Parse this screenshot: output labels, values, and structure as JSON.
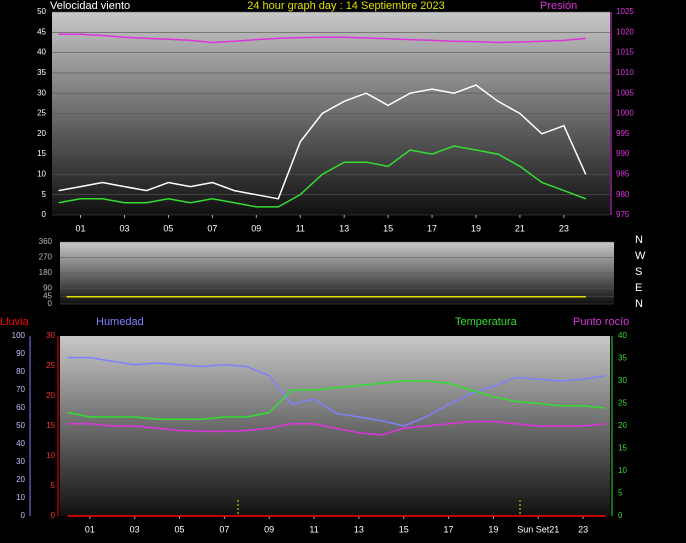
{
  "chart_data": [
    {
      "type": "line",
      "title": "24 hour graph day : 14 Septiembre 2023",
      "y_label": "Velocidad viento",
      "y2_label": "Presión",
      "x": [
        0,
        1,
        2,
        3,
        4,
        5,
        6,
        7,
        8,
        9,
        10,
        11,
        12,
        13,
        14,
        15,
        16,
        17,
        18,
        19,
        20,
        21,
        22,
        23,
        24
      ],
      "xlim": [
        -0.3,
        25.1
      ],
      "xticks": [
        {
          "value": 1,
          "label": "01"
        },
        {
          "value": 3,
          "label": "03"
        },
        {
          "value": 5,
          "label": "05"
        },
        {
          "value": 7,
          "label": "07"
        },
        {
          "value": 9,
          "label": "09"
        },
        {
          "value": 11,
          "label": "11"
        },
        {
          "value": 13,
          "label": "13"
        },
        {
          "value": 15,
          "label": "15"
        },
        {
          "value": 17,
          "label": "17"
        },
        {
          "value": 19,
          "label": "19"
        },
        {
          "value": 21,
          "label": "21"
        },
        {
          "value": 23,
          "label": "23"
        }
      ],
      "ylim": [
        0,
        50
      ],
      "yticks": [
        0,
        5,
        10,
        15,
        20,
        25,
        30,
        35,
        40,
        45,
        50
      ],
      "y2lim": [
        975,
        1025
      ],
      "y2ticks": [
        975,
        980,
        985,
        990,
        995,
        1000,
        1005,
        1010,
        1015,
        1020,
        1025
      ],
      "grid": true,
      "series": [
        {
          "color": "#ffffff",
          "values": [
            6,
            7,
            8,
            7,
            6,
            8,
            7,
            8,
            6,
            5,
            4,
            18,
            25,
            28,
            30,
            27,
            30,
            31,
            30,
            32,
            28,
            25,
            20,
            22,
            10
          ]
        },
        {
          "color": "#33dd33",
          "values": [
            3,
            4,
            4,
            3,
            3,
            4,
            3,
            4,
            3,
            2,
            2,
            5,
            10,
            13,
            13,
            12,
            16,
            15,
            17,
            16,
            15,
            12,
            8,
            6,
            4
          ]
        },
        {
          "color": "#dd33dd",
          "axis": "y2",
          "values": [
            1019.5,
            1019.5,
            1019.2,
            1018.8,
            1018.5,
            1018.3,
            1018.0,
            1017.5,
            1017.8,
            1018.2,
            1018.5,
            1018.7,
            1018.8,
            1018.8,
            1018.6,
            1018.4,
            1018.2,
            1018.0,
            1017.8,
            1017.7,
            1017.5,
            1017.6,
            1017.8,
            1018.0,
            1018.5
          ]
        }
      ]
    },
    {
      "type": "line",
      "direction_labels": [
        "N",
        "W",
        "S",
        "E",
        "N"
      ],
      "x": [
        0,
        1,
        2,
        3,
        4,
        5,
        6,
        7,
        8,
        9,
        10,
        11,
        12,
        13,
        14,
        15,
        16,
        17,
        18,
        19,
        20,
        21,
        22,
        23,
        24
      ],
      "xlim": [
        -0.3,
        25.3
      ],
      "ylim": [
        0,
        360
      ],
      "yticks": [
        0,
        45,
        90,
        180,
        270,
        360
      ],
      "grid": true,
      "series": [
        {
          "color": "#e0e000",
          "values": [
            42,
            42,
            42,
            42,
            42,
            42,
            42,
            42,
            42,
            42,
            42,
            42,
            42,
            42,
            42,
            42,
            42,
            42,
            42,
            42,
            42,
            42,
            42,
            42,
            42
          ]
        }
      ]
    },
    {
      "type": "line",
      "x": [
        0,
        1,
        2,
        3,
        4,
        5,
        6,
        7,
        8,
        9,
        10,
        11,
        12,
        13,
        14,
        15,
        16,
        17,
        18,
        19,
        20,
        21,
        22,
        23,
        24
      ],
      "xlim": [
        -0.33,
        24.2
      ],
      "xticks": [
        {
          "value": 1,
          "label": "01"
        },
        {
          "value": 3,
          "label": "03"
        },
        {
          "value": 5,
          "label": "05"
        },
        {
          "value": 7,
          "label": "07"
        },
        {
          "value": 9,
          "label": "09"
        },
        {
          "value": 11,
          "label": "11"
        },
        {
          "value": 13,
          "label": "13"
        },
        {
          "value": 15,
          "label": "15"
        },
        {
          "value": 17,
          "label": "17"
        },
        {
          "value": 19,
          "label": "19"
        },
        {
          "value": 21,
          "label": "Sun Set21"
        },
        {
          "value": 23,
          "label": "23"
        }
      ],
      "ylim": [
        0,
        30
      ],
      "yticks": [
        0,
        5,
        10,
        15,
        20,
        25,
        30
      ],
      "y2lim": [
        0,
        40
      ],
      "y2ticks": [
        0,
        5,
        10,
        15,
        20,
        25,
        30,
        35,
        40
      ],
      "y3lim": [
        0,
        100
      ],
      "y3ticks": [
        0,
        10,
        20,
        30,
        40,
        50,
        60,
        70,
        80,
        90,
        100
      ],
      "series": [
        {
          "name": "Lluvia",
          "color": "#ff0000",
          "values": [
            0,
            0,
            0,
            0,
            0,
            0,
            0,
            0,
            0,
            0,
            0,
            0,
            0,
            0,
            0,
            0,
            0,
            0,
            0,
            0,
            0,
            0,
            0,
            0,
            0
          ]
        },
        {
          "name": "Humedad",
          "color": "#8080ff",
          "axis": "y3",
          "values": [
            88,
            88,
            86,
            84,
            85,
            84,
            83,
            84,
            83,
            78,
            62,
            65,
            57,
            55,
            53,
            50,
            55,
            62,
            68,
            72,
            77,
            76,
            75,
            76,
            78
          ]
        },
        {
          "name": "Temperatura",
          "color": "#33dd33",
          "axis": "y2",
          "values": [
            23,
            22,
            22,
            22,
            21.5,
            21.5,
            21.5,
            22,
            22,
            23,
            28,
            28,
            28.5,
            29,
            29.5,
            30,
            30,
            29.5,
            28,
            26.5,
            25.5,
            25,
            24.5,
            24.5,
            24
          ]
        },
        {
          "name": "Punto rocío",
          "color": "#dd33dd",
          "axis": "y2",
          "values": [
            20.5,
            20.5,
            20,
            20,
            19.5,
            19,
            18.8,
            18.8,
            19,
            19.5,
            20.5,
            20.5,
            19.5,
            18.5,
            18,
            19.5,
            20,
            20.5,
            21,
            21,
            20.5,
            20,
            20,
            20,
            20.5
          ]
        }
      ]
    }
  ]
}
